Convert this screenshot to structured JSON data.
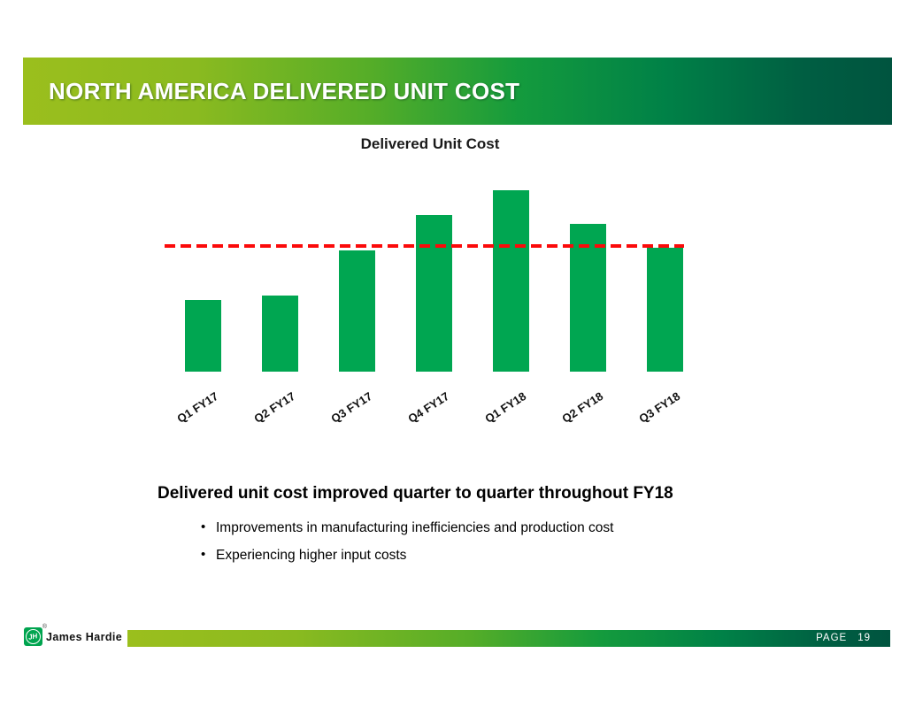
{
  "header": {
    "title": "NORTH AMERICA DELIVERED UNIT COST"
  },
  "chart_data": {
    "type": "bar",
    "title": "Delivered Unit Cost",
    "categories": [
      "Q1 FY17",
      "Q2 FY17",
      "Q3 FY17",
      "Q4 FY17",
      "Q1 FY18",
      "Q2 FY18",
      "Q3 FY18"
    ],
    "values": [
      39.5,
      42,
      67,
      86.5,
      100,
      81.5,
      68.5
    ],
    "ylim": [
      0,
      100
    ],
    "xlabel": "",
    "ylabel": "",
    "grid": false,
    "legend": false,
    "axes_visible": false,
    "x_tick_rotation_deg": 33,
    "series_color": "#00A651",
    "reference_line": {
      "value": 69.5,
      "color": "#FB0A0A",
      "style": "dashed"
    }
  },
  "body": {
    "heading": "Delivered unit cost improved quarter to quarter throughout FY18",
    "bullets": [
      "Improvements in manufacturing inefficiencies and production cost",
      "Experiencing higher input costs"
    ]
  },
  "footer": {
    "brand": "James Hardie",
    "logo_monogram": "JH",
    "registered_mark": "®",
    "page_label": "PAGE",
    "page_number": "19"
  },
  "colors": {
    "bar_green": "#00A651",
    "logo_green": "#00A44F",
    "reference_line_red": "#FB0A0A",
    "banner_gradient_start": "#9BBF1D",
    "banner_gradient_end": "#00543F",
    "title_text": "#FFFFFF",
    "body_text": "#000000"
  }
}
